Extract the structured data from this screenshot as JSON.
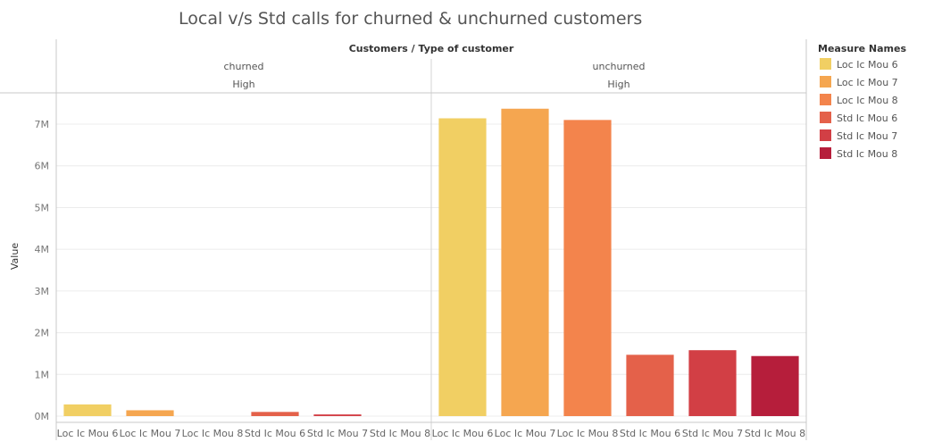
{
  "chart_data": {
    "type": "bar",
    "title": "Local v/s Std calls for churned & unchurned customers",
    "header_title": "Customers / Type of customer",
    "ylabel": "Value",
    "ylim": [
      -0.15,
      7.75
    ],
    "y_unit": "M",
    "yticks": [
      {
        "value": 0,
        "label": "0M"
      },
      {
        "value": 1,
        "label": "1M"
      },
      {
        "value": 2,
        "label": "2M"
      },
      {
        "value": 3,
        "label": "3M"
      },
      {
        "value": 4,
        "label": "4M"
      },
      {
        "value": 5,
        "label": "5M"
      },
      {
        "value": 6,
        "label": "6M"
      },
      {
        "value": 7,
        "label": "7M"
      }
    ],
    "grid": true,
    "legend_position": "right",
    "legend_title": "Measure Names",
    "categories": [
      "Loc Ic Mou 6",
      "Loc Ic Mou 7",
      "Loc Ic Mou 8",
      "Std Ic Mou 6",
      "Std Ic Mou 7",
      "Std Ic Mou 8"
    ],
    "colors": [
      "#f1cf63",
      "#f5a650",
      "#f3844c",
      "#e4614a",
      "#d23f45",
      "#b61e3b"
    ],
    "panels": [
      {
        "group": "churned",
        "sub": "High",
        "values": [
          0.28,
          0.14,
          0.0,
          0.1,
          0.04,
          0.0
        ]
      },
      {
        "group": "unchurned",
        "sub": "High",
        "values": [
          7.14,
          7.37,
          7.1,
          1.47,
          1.58,
          1.44
        ]
      }
    ]
  }
}
